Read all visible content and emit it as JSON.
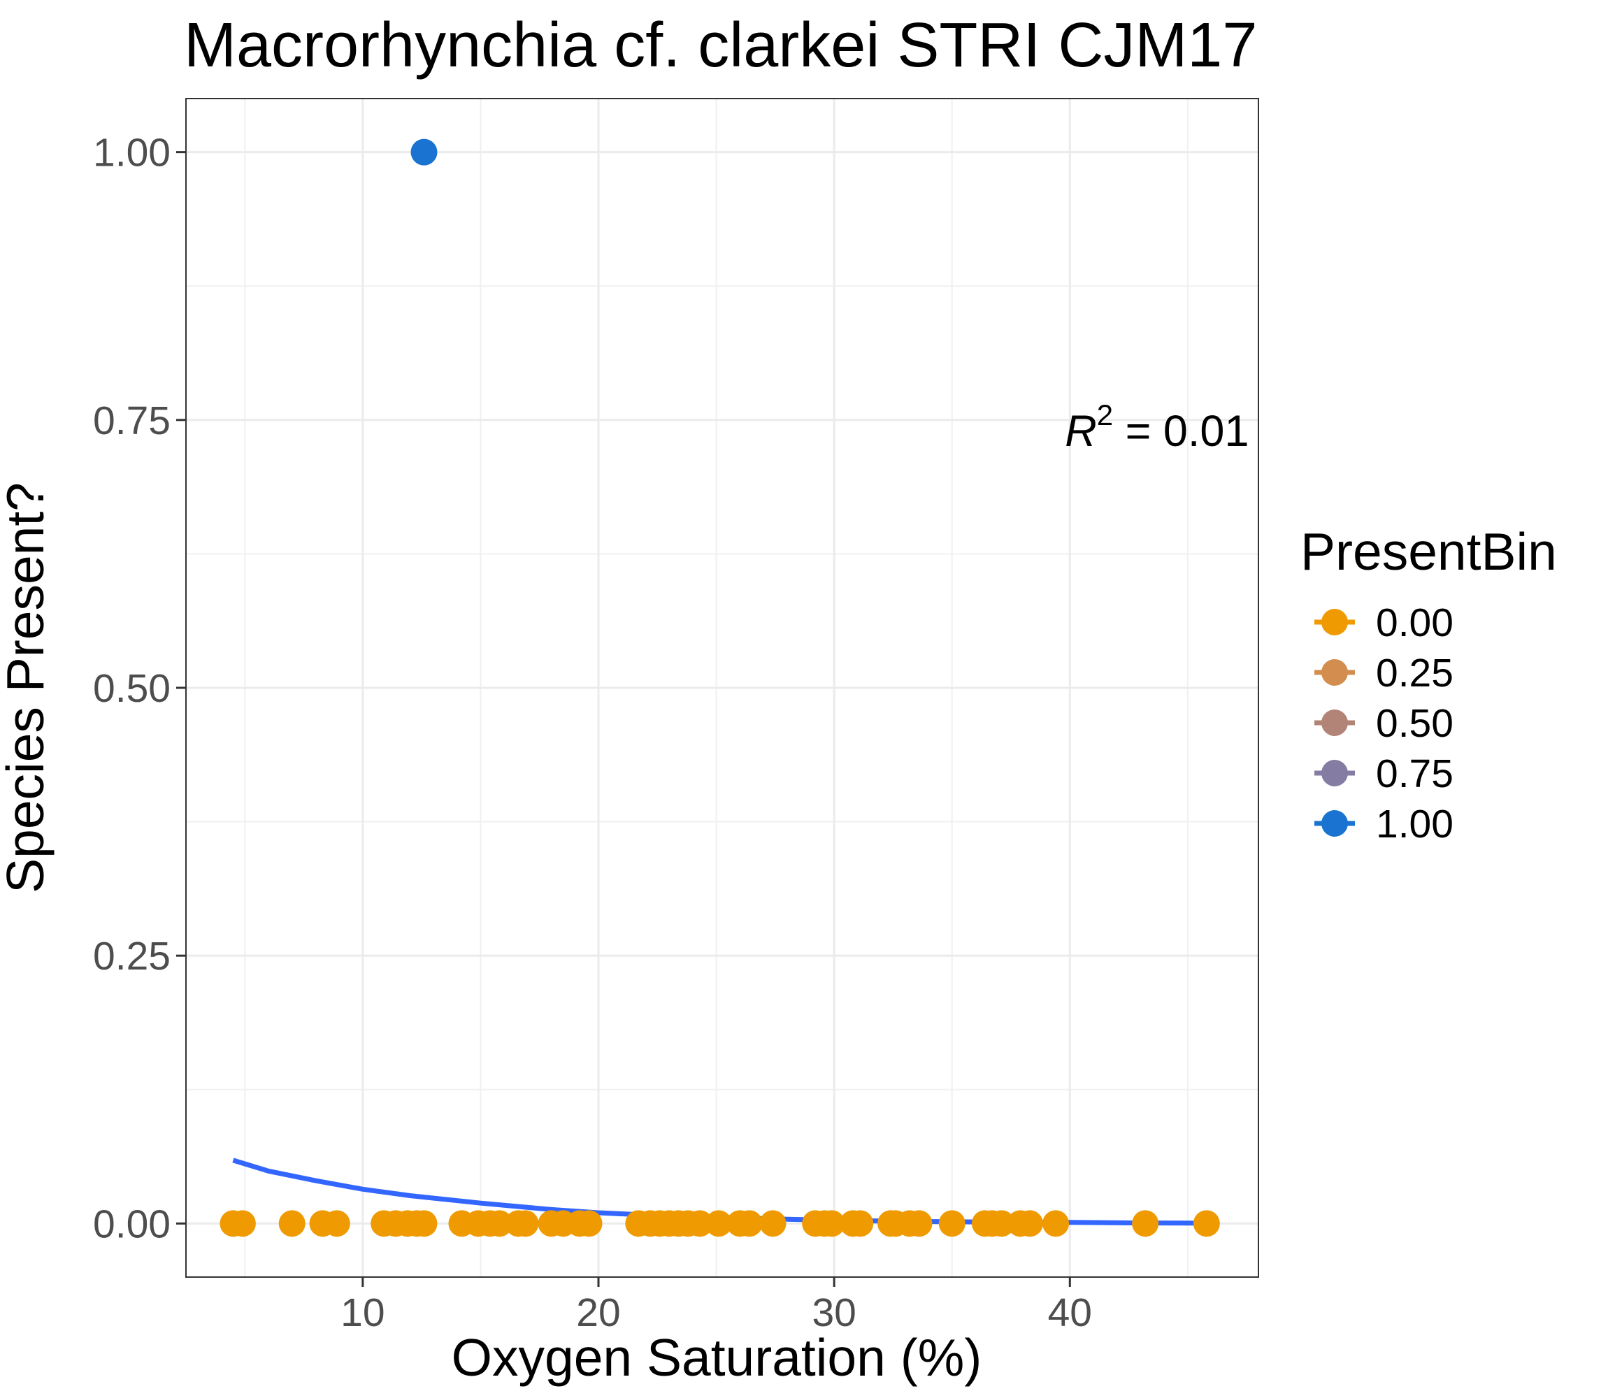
{
  "chart_data": {
    "type": "scatter",
    "title": "Macrorhynchia cf. clarkei STRI CJM17",
    "xlabel": "Oxygen Saturation (%)",
    "ylabel": "Species Present?",
    "xlim": [
      2.5,
      48.0
    ],
    "ylim": [
      -0.05,
      1.05
    ],
    "x_ticks": [
      10,
      20,
      30,
      40
    ],
    "x_tick_labels": [
      "10",
      "20",
      "30",
      "40"
    ],
    "y_ticks": [
      0,
      0.25,
      0.5,
      0.75,
      1.0
    ],
    "y_tick_labels": [
      "0.00",
      "0.25",
      "0.50",
      "0.75",
      "1.00"
    ],
    "grid": true,
    "legend": {
      "title": "PresentBin",
      "position": "right",
      "entries": [
        {
          "label": "0.00",
          "color": "#ef9a00"
        },
        {
          "label": "0.25",
          "color": "#d38d4f"
        },
        {
          "label": "0.50",
          "color": "#b28377"
        },
        {
          "label": "0.75",
          "color": "#847ca2"
        },
        {
          "label": "1.00",
          "color": "#1a73d0"
        }
      ]
    },
    "points": {
      "absent": {
        "y": 0,
        "color": "#ef9a00",
        "x": [
          4.5,
          4.9,
          7.0,
          8.3,
          8.9,
          10.9,
          11.4,
          11.9,
          12.3,
          12.6,
          14.2,
          14.9,
          15.4,
          15.8,
          16.6,
          16.9,
          18.0,
          18.5,
          19.2,
          19.6,
          21.7,
          22.2,
          22.6,
          23.0,
          23.4,
          23.8,
          24.3,
          25.1,
          26.0,
          26.4,
          27.4,
          29.2,
          29.6,
          29.9,
          30.8,
          31.1,
          32.4,
          32.6,
          33.2,
          33.6,
          35.0,
          36.4,
          36.7,
          37.1,
          37.9,
          38.3,
          39.4,
          43.2,
          45.8
        ]
      },
      "present": {
        "y": 1,
        "color": "#1a73d0",
        "x": [
          12.6
        ]
      }
    },
    "fit_line": {
      "color": "#3366ff",
      "x": [
        4.5,
        6,
        8,
        10,
        12,
        15,
        18,
        20,
        22,
        25,
        28,
        30,
        33,
        36,
        40,
        43,
        45.8
      ],
      "y": [
        0.059,
        0.049,
        0.04,
        0.032,
        0.026,
        0.019,
        0.013,
        0.01,
        0.008,
        0.006,
        0.004,
        0.003,
        0.002,
        0.0015,
        0.001,
        0.0005,
        0.0003
      ]
    },
    "annotation": {
      "r_symbol": "R",
      "exponent": "2",
      "text": " = 0.01",
      "x": 47.6,
      "y": 0.74
    }
  }
}
